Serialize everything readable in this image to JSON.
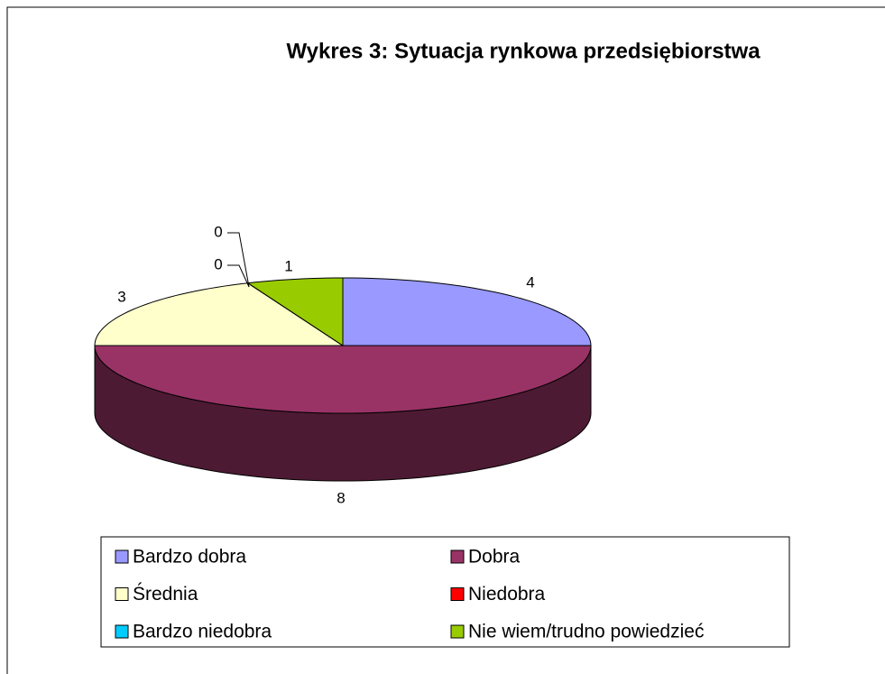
{
  "chart_data": {
    "type": "pie",
    "title": "Wykres 3: Sytuacja rynkowa przedsiębiorstwa",
    "categories": [
      "Bardzo dobra",
      "Dobra",
      "Średnia",
      "Niedobra",
      "Bardzo niedobra",
      "Nie wiem/trudno powiedzieć"
    ],
    "values": [
      4,
      8,
      3,
      0,
      0,
      1
    ],
    "colors": [
      "#9999ff",
      "#993366",
      "#ffffcc",
      "#ff0000",
      "#00ccff",
      "#99cc00"
    ],
    "legend": "bottom"
  }
}
